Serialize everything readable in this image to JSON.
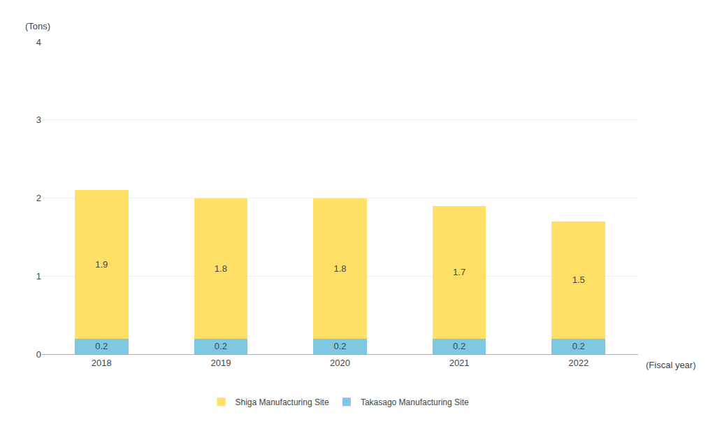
{
  "chart_data": {
    "type": "bar",
    "stacked": true,
    "categories": [
      "2018",
      "2019",
      "2020",
      "2021",
      "2022"
    ],
    "series": [
      {
        "name": "Takasago Manufacturing Site",
        "color": "#7ec8e3",
        "values": [
          0.2,
          0.2,
          0.2,
          0.2,
          0.2
        ]
      },
      {
        "name": "Shiga Manufacturing Site",
        "color": "#ffe066",
        "values": [
          1.9,
          1.8,
          1.8,
          1.7,
          1.5
        ]
      }
    ],
    "ylabel": "(Tons)",
    "xlabel": "(Fiscal year)",
    "ylim": [
      0,
      4
    ],
    "yticks": [
      0,
      1,
      2,
      3,
      4
    ],
    "grid": true,
    "legend": "bottom",
    "data_labels": true
  }
}
